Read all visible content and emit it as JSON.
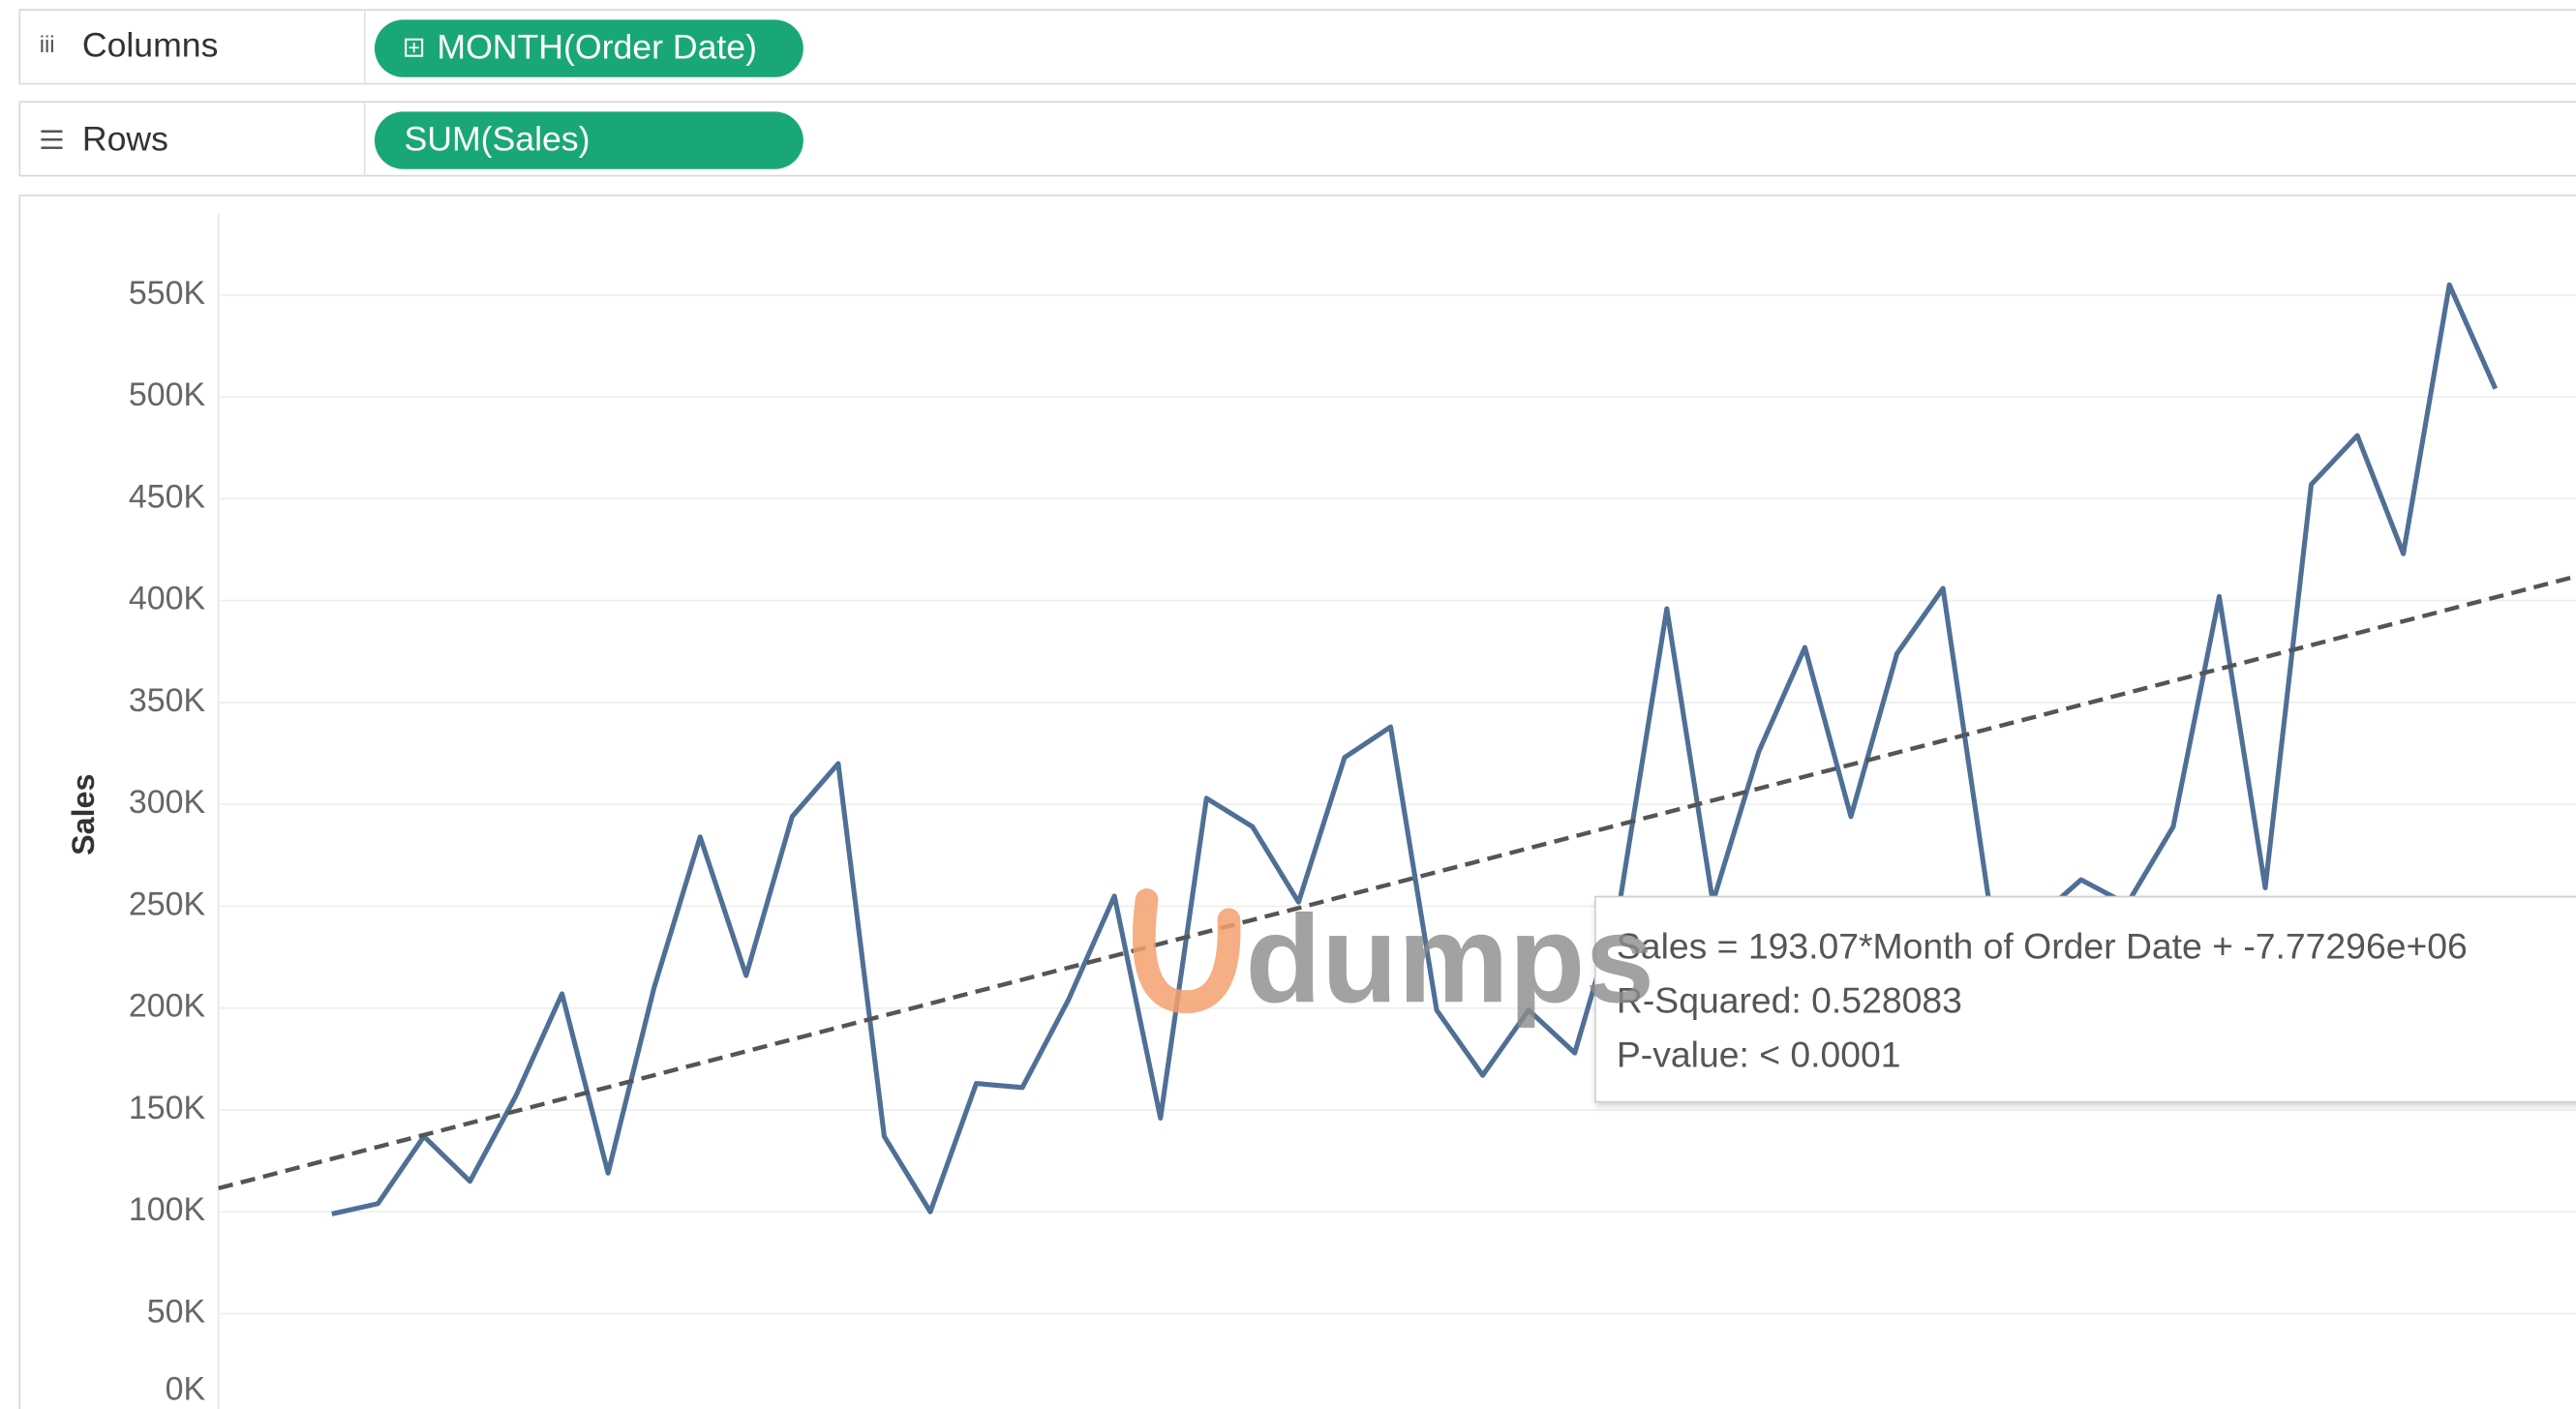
{
  "shelves": {
    "columns": {
      "label": "Columns",
      "pill": "MONTH(Order Date)"
    },
    "rows": {
      "label": "Rows",
      "pill": "SUM(Sales)"
    }
  },
  "chart_data": {
    "type": "line",
    "y_label": "Sales",
    "categories": [
      null,
      null,
      null,
      null,
      null,
      null,
      null,
      null,
      null,
      null,
      null,
      null,
      null,
      null,
      null,
      null,
      null,
      null,
      null,
      null,
      null,
      null,
      null,
      null,
      null,
      null,
      null,
      null,
      null,
      null,
      null,
      null,
      null,
      null,
      null,
      null,
      null,
      null,
      null,
      null,
      null,
      null,
      null,
      null,
      null,
      null,
      null,
      null
    ],
    "series": [
      {
        "name": "SUM(Sales)",
        "color": "#4f6f96",
        "values": [
          99000,
          104000,
          137000,
          115000,
          157000,
          207000,
          119000,
          210000,
          284000,
          216000,
          294000,
          320000,
          137000,
          100000,
          163000,
          161000,
          204000,
          255000,
          146000,
          303000,
          289000,
          252000,
          323000,
          338000,
          199000,
          167000,
          199000,
          178000,
          255000,
          396000,
          252000,
          326000,
          377000,
          294000,
          374000,
          406000,
          252000,
          243000,
          263000,
          251000,
          289000,
          402000,
          259000,
          457000,
          481000,
          423000,
          555000,
          504000
        ]
      }
    ],
    "trend_line": {
      "values": [
        126000,
        401600
      ],
      "color": "#555555"
    },
    "ylim": [
      0,
      590000
    ],
    "yticks": [
      {
        "value": 0,
        "label": "0K"
      },
      {
        "value": 50000,
        "label": "50K"
      },
      {
        "value": 100000,
        "label": "100K"
      },
      {
        "value": 150000,
        "label": "150K"
      },
      {
        "value": 200000,
        "label": "200K"
      },
      {
        "value": 250000,
        "label": "250K"
      },
      {
        "value": 300000,
        "label": "300K"
      },
      {
        "value": 350000,
        "label": "350K"
      },
      {
        "value": 400000,
        "label": "400K"
      },
      {
        "value": 450000,
        "label": "450K"
      },
      {
        "value": 500000,
        "label": "500K"
      },
      {
        "value": 550000,
        "label": "550K"
      }
    ],
    "grid": true,
    "tooltip": [
      "Sales = 193.07*Month of Order Date + -7.77296e+06",
      "R-Squared: 0.528083",
      "P-value: < 0.0001"
    ],
    "watermark": "dumps"
  }
}
